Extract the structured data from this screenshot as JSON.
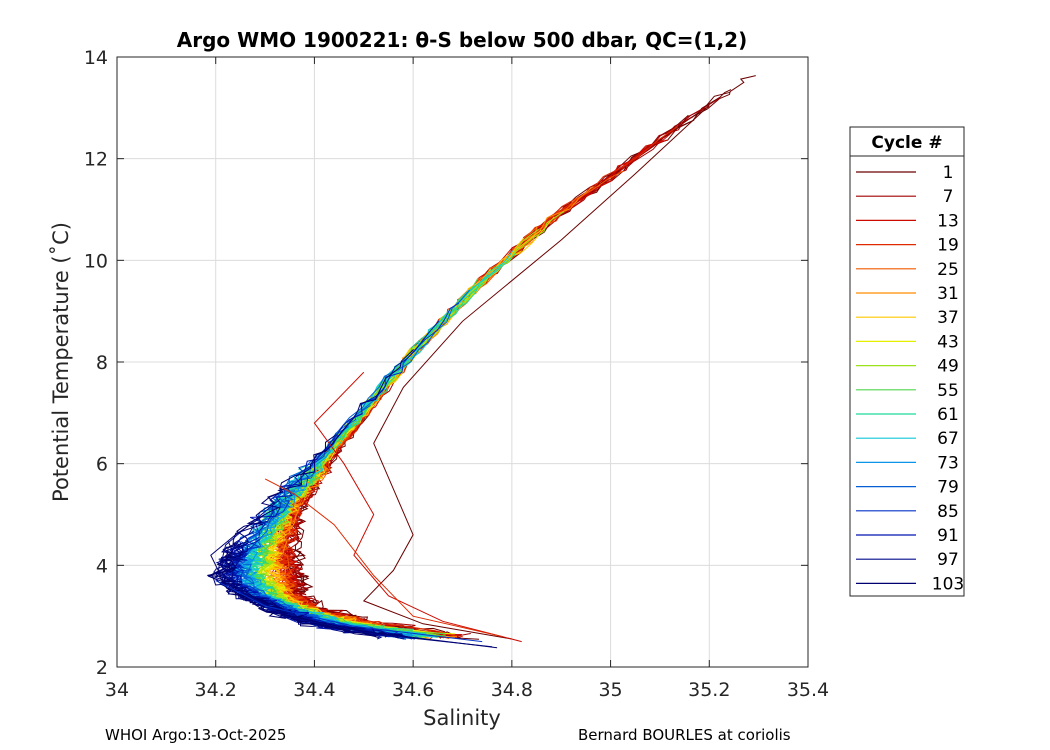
{
  "chart_data": {
    "type": "line",
    "title": "Argo WMO 1900221: θ-S below 500 dbar,  QC=(1,2)",
    "xlabel": "Salinity",
    "ylabel": "Potential Temperature (˚C)",
    "xlim": [
      34.0,
      35.4
    ],
    "ylim": [
      2,
      14
    ],
    "xticks": [
      "34",
      "34.2",
      "34.4",
      "34.6",
      "34.8",
      "35",
      "35.2",
      "35.4"
    ],
    "yticks": [
      "2",
      "4",
      "6",
      "8",
      "10",
      "12",
      "14"
    ],
    "grid": true,
    "legend": {
      "title": "Cycle #",
      "placement": "right",
      "entries": [
        {
          "label": "1",
          "color": "#6b0000"
        },
        {
          "label": "7",
          "color": "#a10000"
        },
        {
          "label": "13",
          "color": "#cc0a00"
        },
        {
          "label": "19",
          "color": "#e02a00"
        },
        {
          "label": "25",
          "color": "#f25a00"
        },
        {
          "label": "31",
          "color": "#ff8c00"
        },
        {
          "label": "37",
          "color": "#ffc800"
        },
        {
          "label": "43",
          "color": "#e6ee00"
        },
        {
          "label": "49",
          "color": "#9be21a"
        },
        {
          "label": "55",
          "color": "#4fd64a"
        },
        {
          "label": "61",
          "color": "#1fd99a"
        },
        {
          "label": "67",
          "color": "#12c8d8"
        },
        {
          "label": "73",
          "color": "#0a95e8"
        },
        {
          "label": "79",
          "color": "#0560d8"
        },
        {
          "label": "85",
          "color": "#0433c8"
        },
        {
          "label": "91",
          "color": "#0014b0"
        },
        {
          "label": "97",
          "color": "#000a8a"
        },
        {
          "label": "103",
          "color": "#000070"
        }
      ]
    },
    "profile_backbone": [
      {
        "s": 34.6,
        "t": 2.6
      },
      {
        "s": 34.44,
        "t": 2.85
      },
      {
        "s": 34.36,
        "t": 3.1
      },
      {
        "s": 34.3,
        "t": 3.4
      },
      {
        "s": 34.27,
        "t": 3.8
      },
      {
        "s": 34.28,
        "t": 4.3
      },
      {
        "s": 34.32,
        "t": 5.0
      },
      {
        "s": 34.37,
        "t": 5.6
      },
      {
        "s": 34.44,
        "t": 6.4
      },
      {
        "s": 34.52,
        "t": 7.3
      },
      {
        "s": 34.62,
        "t": 8.4
      },
      {
        "s": 34.74,
        "t": 9.6
      },
      {
        "s": 34.88,
        "t": 10.8
      },
      {
        "s": 35.05,
        "t": 12.0
      },
      {
        "s": 35.22,
        "t": 13.2
      },
      {
        "s": 35.3,
        "t": 13.7
      }
    ],
    "warm_variants": [
      {
        "cycle": "1",
        "points": [
          {
            "s": 34.8,
            "t": 2.55
          },
          {
            "s": 34.62,
            "t": 2.85
          },
          {
            "s": 34.5,
            "t": 3.3
          },
          {
            "s": 34.56,
            "t": 3.9
          },
          {
            "s": 34.6,
            "t": 4.6
          },
          {
            "s": 34.56,
            "t": 5.5
          },
          {
            "s": 34.52,
            "t": 6.4
          },
          {
            "s": 34.58,
            "t": 7.5
          },
          {
            "s": 34.7,
            "t": 8.8
          },
          {
            "s": 34.9,
            "t": 10.4
          },
          {
            "s": 35.05,
            "t": 11.7
          },
          {
            "s": 35.2,
            "t": 13.05
          }
        ]
      },
      {
        "cycle": "13",
        "points": [
          {
            "s": 34.82,
            "t": 2.5
          },
          {
            "s": 34.66,
            "t": 2.9
          },
          {
            "s": 34.55,
            "t": 3.4
          },
          {
            "s": 34.48,
            "t": 4.2
          },
          {
            "s": 34.52,
            "t": 5.0
          },
          {
            "s": 34.46,
            "t": 6.0
          },
          {
            "s": 34.4,
            "t": 6.8
          },
          {
            "s": 34.5,
            "t": 7.8
          }
        ]
      },
      {
        "cycle": "19",
        "points": [
          {
            "s": 34.78,
            "t": 2.6
          },
          {
            "s": 34.6,
            "t": 3.0
          },
          {
            "s": 34.52,
            "t": 3.8
          },
          {
            "s": 34.44,
            "t": 4.8
          },
          {
            "s": 34.36,
            "t": 5.4
          },
          {
            "s": 34.3,
            "t": 5.7
          }
        ]
      }
    ],
    "cold_variants": [
      {
        "cycle": "97",
        "points": [
          {
            "s": 34.76,
            "t": 2.4
          },
          {
            "s": 34.52,
            "t": 2.65
          },
          {
            "s": 34.34,
            "t": 3.0
          },
          {
            "s": 34.25,
            "t": 3.5
          },
          {
            "s": 34.21,
            "t": 4.0
          },
          {
            "s": 34.22,
            "t": 4.4
          },
          {
            "s": 34.28,
            "t": 4.9
          },
          {
            "s": 34.33,
            "t": 5.3
          }
        ]
      },
      {
        "cycle": "103",
        "points": [
          {
            "s": 34.77,
            "t": 2.38
          },
          {
            "s": 34.5,
            "t": 2.7
          },
          {
            "s": 34.3,
            "t": 3.1
          },
          {
            "s": 34.22,
            "t": 3.6
          },
          {
            "s": 34.19,
            "t": 4.2
          },
          {
            "s": 34.24,
            "t": 4.6
          },
          {
            "s": 34.3,
            "t": 5.0
          }
        ]
      },
      {
        "cycle": "85",
        "points": [
          {
            "s": 34.74,
            "t": 2.5
          },
          {
            "s": 34.48,
            "t": 2.8
          },
          {
            "s": 34.3,
            "t": 3.2
          },
          {
            "s": 34.2,
            "t": 3.7
          }
        ]
      }
    ]
  },
  "footer": {
    "left": "WHOI Argo:13-Oct-2025",
    "right": "Bernard BOURLES at coriolis"
  }
}
